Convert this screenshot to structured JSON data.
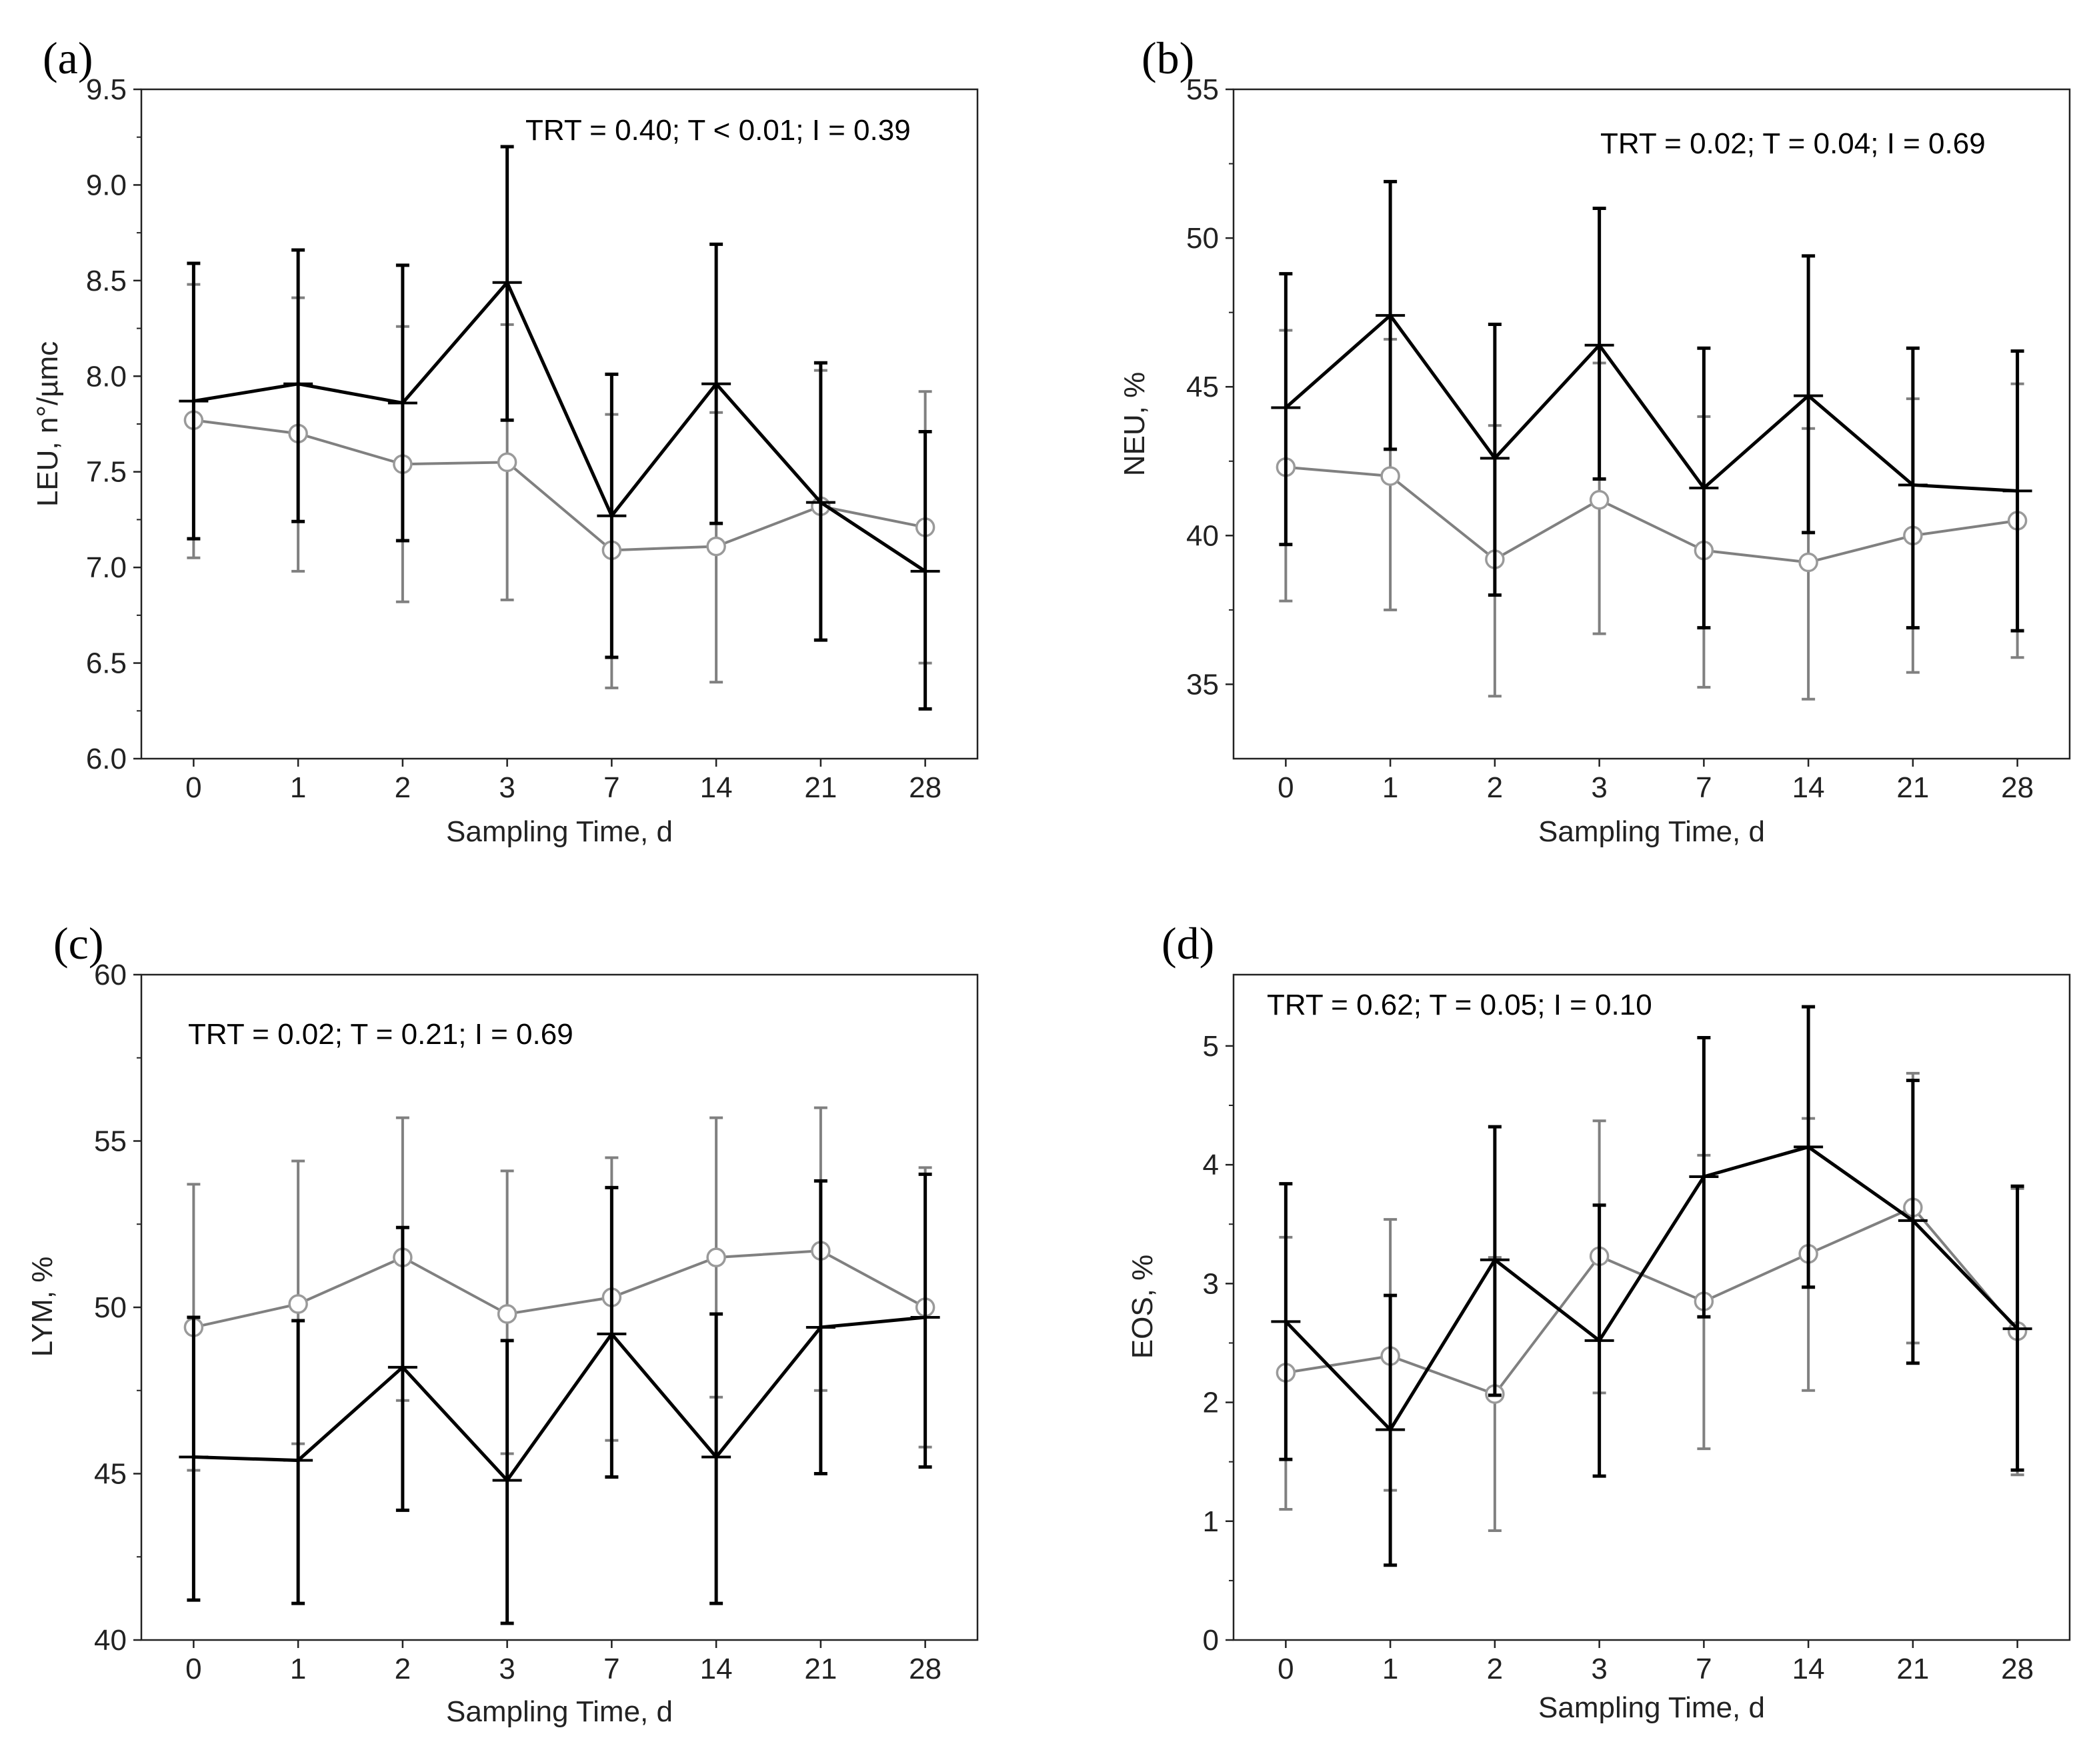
{
  "chart_data": [
    {
      "panel": "(a)",
      "type": "line",
      "stats": "TRT = 0.40; T < 0.01; I = 0.39",
      "xlabel": "Sampling Time, d",
      "ylabel": "LEU, n°/µmc",
      "categories": [
        "0",
        "1",
        "2",
        "3",
        "7",
        "14",
        "21",
        "28"
      ],
      "ylim": [
        6.0,
        9.5
      ],
      "yticks": [
        "6.0",
        "6.5",
        "7.0",
        "7.5",
        "8.0",
        "8.5",
        "9.0",
        "9.5"
      ],
      "series": [
        {
          "name": "black",
          "color": "#000000",
          "marker": "plus",
          "values": [
            7.87,
            7.96,
            7.86,
            8.49,
            7.27,
            7.96,
            7.34,
            6.98
          ],
          "err_low": [
            7.15,
            7.24,
            7.14,
            7.77,
            6.53,
            7.23,
            6.62,
            6.26
          ],
          "err_high": [
            8.59,
            8.66,
            8.58,
            9.2,
            8.01,
            8.69,
            8.07,
            7.71
          ]
        },
        {
          "name": "gray",
          "color": "#808080",
          "marker": "circle",
          "values": [
            7.77,
            7.7,
            7.54,
            7.55,
            7.09,
            7.11,
            7.32,
            7.21
          ],
          "err_low": [
            7.05,
            6.98,
            6.82,
            6.83,
            6.37,
            6.4,
            6.62,
            6.5
          ],
          "err_high": [
            8.48,
            8.41,
            8.26,
            8.27,
            7.8,
            7.81,
            8.03,
            7.92
          ]
        }
      ]
    },
    {
      "panel": "(b)",
      "type": "line",
      "stats": "TRT = 0.02; T = 0.04; I = 0.69",
      "xlabel": "Sampling Time, d",
      "ylabel": "NEU, %",
      "categories": [
        "0",
        "1",
        "2",
        "3",
        "7",
        "14",
        "21",
        "28"
      ],
      "ylim": [
        32.5,
        55
      ],
      "yticks": [
        "35",
        "40",
        "45",
        "50",
        "55"
      ],
      "series": [
        {
          "name": "black",
          "color": "#000000",
          "marker": "plus",
          "values": [
            44.3,
            47.4,
            42.6,
            46.4,
            41.6,
            44.7,
            41.7,
            41.5
          ],
          "err_low": [
            39.7,
            42.9,
            38.0,
            41.9,
            36.9,
            40.1,
            36.9,
            36.8
          ],
          "err_high": [
            48.8,
            51.9,
            47.1,
            51.0,
            46.3,
            49.4,
            46.3,
            46.2
          ]
        },
        {
          "name": "gray",
          "color": "#808080",
          "marker": "circle",
          "values": [
            42.3,
            42.0,
            39.2,
            41.2,
            39.5,
            39.1,
            40.0,
            40.5
          ],
          "err_low": [
            37.8,
            37.5,
            34.6,
            36.7,
            34.9,
            34.5,
            35.4,
            35.9
          ],
          "err_high": [
            46.9,
            46.6,
            43.7,
            45.8,
            44.0,
            43.6,
            44.6,
            45.1
          ]
        }
      ]
    },
    {
      "panel": "(c)",
      "type": "line",
      "stats": "TRT = 0.02; T = 0.21; I = 0.69",
      "xlabel": "Sampling Time, d",
      "ylabel": "LYM, %",
      "categories": [
        "0",
        "1",
        "2",
        "3",
        "7",
        "14",
        "21",
        "28"
      ],
      "ylim": [
        40,
        60
      ],
      "yticks": [
        "40",
        "45",
        "50",
        "55",
        "60"
      ],
      "series": [
        {
          "name": "black",
          "color": "#000000",
          "marker": "plus",
          "values": [
            45.5,
            45.4,
            48.2,
            44.8,
            49.2,
            45.5,
            49.4,
            49.7
          ],
          "err_low": [
            41.2,
            41.1,
            43.9,
            40.5,
            44.9,
            41.1,
            45.0,
            45.2
          ],
          "err_high": [
            49.7,
            49.6,
            52.4,
            49.0,
            53.6,
            49.8,
            53.8,
            54.0
          ]
        },
        {
          "name": "gray",
          "color": "#808080",
          "marker": "circle",
          "values": [
            49.4,
            50.1,
            51.5,
            49.8,
            50.3,
            51.5,
            51.7,
            50.0
          ],
          "err_low": [
            45.1,
            45.9,
            47.2,
            45.6,
            46.0,
            47.3,
            47.5,
            45.8
          ],
          "err_high": [
            53.7,
            54.4,
            55.7,
            54.1,
            54.5,
            55.7,
            56.0,
            54.2
          ]
        }
      ]
    },
    {
      "panel": "(d)",
      "type": "line",
      "stats": "TRT = 0.62; T = 0.05; I = 0.10",
      "xlabel": "Sampling Time, d",
      "ylabel": "EOS, %",
      "categories": [
        "0",
        "1",
        "2",
        "3",
        "7",
        "14",
        "21",
        "28"
      ],
      "ylim": [
        0,
        5.6
      ],
      "yticks": [
        "0",
        "1",
        "2",
        "3",
        "4",
        "5"
      ],
      "series": [
        {
          "name": "black",
          "color": "#000000",
          "marker": "plus",
          "values": [
            2.68,
            1.77,
            3.2,
            2.52,
            3.9,
            4.15,
            3.53,
            2.62
          ],
          "err_low": [
            1.52,
            0.63,
            2.06,
            1.38,
            2.72,
            2.97,
            2.33,
            1.43
          ],
          "err_high": [
            3.84,
            2.9,
            4.32,
            3.66,
            5.07,
            5.33,
            4.71,
            3.82
          ]
        },
        {
          "name": "gray",
          "color": "#808080",
          "marker": "circle",
          "values": [
            2.25,
            2.39,
            2.07,
            3.23,
            2.85,
            3.25,
            3.64,
            2.6
          ],
          "err_low": [
            1.1,
            1.26,
            0.92,
            2.08,
            1.61,
            2.1,
            2.5,
            1.39
          ],
          "err_high": [
            3.39,
            3.54,
            3.22,
            4.37,
            4.08,
            4.39,
            4.77,
            3.8
          ]
        }
      ]
    }
  ]
}
